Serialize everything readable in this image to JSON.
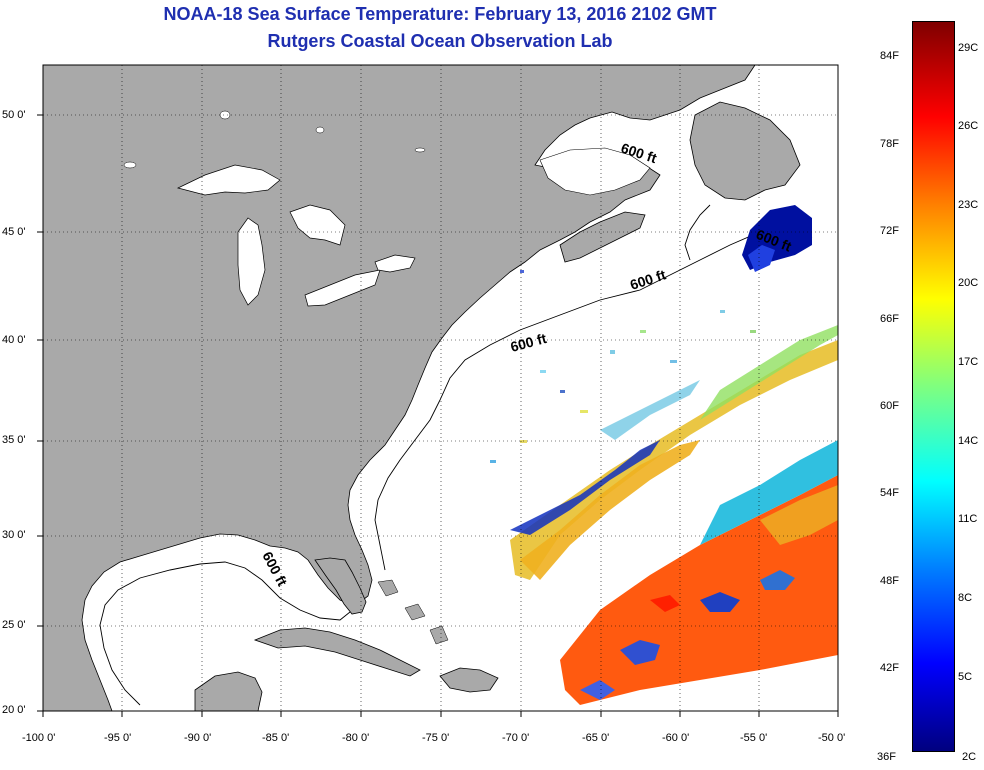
{
  "title_line1": "NOAA-18 Sea Surface Temperature:  February 13, 2016 2102 GMT",
  "title_line2": "Rutgers Coastal Ocean Observation Lab",
  "lon_labels": [
    "-100 0'",
    "-95 0'",
    "-90 0'",
    "-85 0'",
    "-80 0'",
    "-75 0'",
    "-70 0'",
    "-65 0'",
    "-60 0'",
    "-55 0'",
    "-50 0'"
  ],
  "lat_labels": [
    "50 0'",
    "45 0'",
    "40 0'",
    "35 0'",
    "30 0'",
    "25 0'",
    "20 0'"
  ],
  "contour_label": "600 ft",
  "colorbar": {
    "fahrenheit": [
      "84F",
      "78F",
      "72F",
      "66F",
      "60F",
      "54F",
      "48F",
      "42F",
      "36F"
    ],
    "celsius": [
      "29C",
      "26C",
      "23C",
      "20C",
      "17C",
      "14C",
      "11C",
      "8C",
      "5C",
      "2C"
    ]
  },
  "colors": {
    "land": "#a9a9a9",
    "title": "#1f2fb0"
  }
}
